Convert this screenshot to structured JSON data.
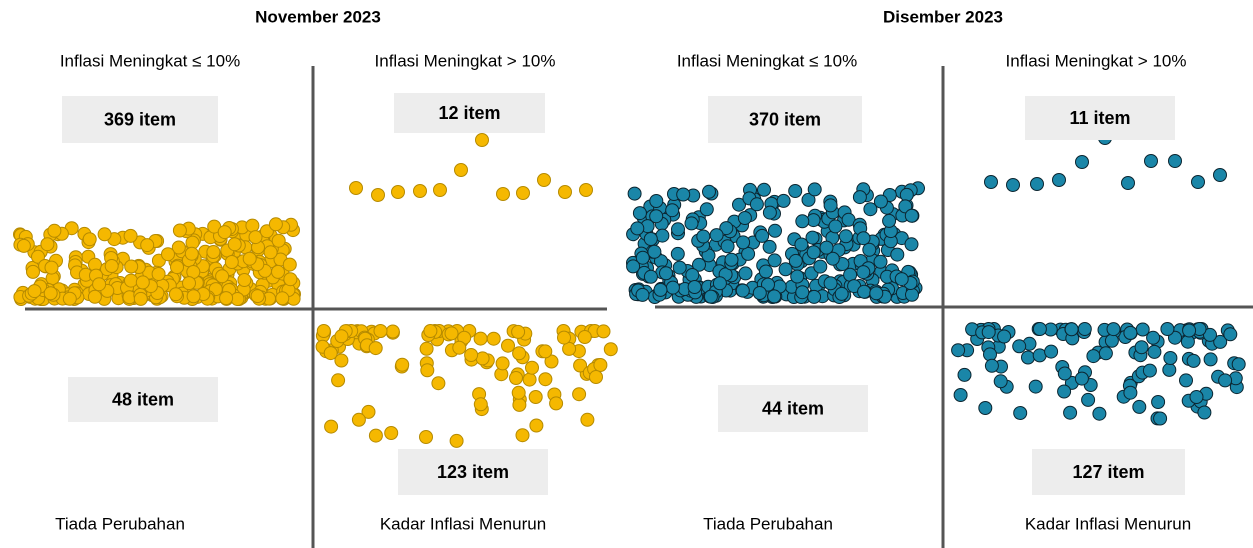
{
  "panels": [
    {
      "title": "November 2023",
      "top_left": {
        "label": "Inflasi Meningkat ≤ 10%",
        "count": "369 item"
      },
      "top_right": {
        "label": "Inflasi Meningkat > 10%",
        "count": "12 item"
      },
      "bottom_left": {
        "label": "Tiada Perubahan",
        "count": "48 item"
      },
      "bottom_right": {
        "label": "Kadar Inflasi Menurun",
        "count": "123 item"
      }
    },
    {
      "title": "Disember 2023",
      "top_left": {
        "label": "Inflasi Meningkat ≤ 10%",
        "count": "370 item"
      },
      "top_right": {
        "label": "Inflasi Meningkat > 10%",
        "count": "11 item"
      },
      "bottom_left": {
        "label": "Tiada Perubahan",
        "count": "44 item"
      },
      "bottom_right": {
        "label": "Kadar Inflasi Menurun",
        "count": "127 item"
      }
    }
  ]
}
